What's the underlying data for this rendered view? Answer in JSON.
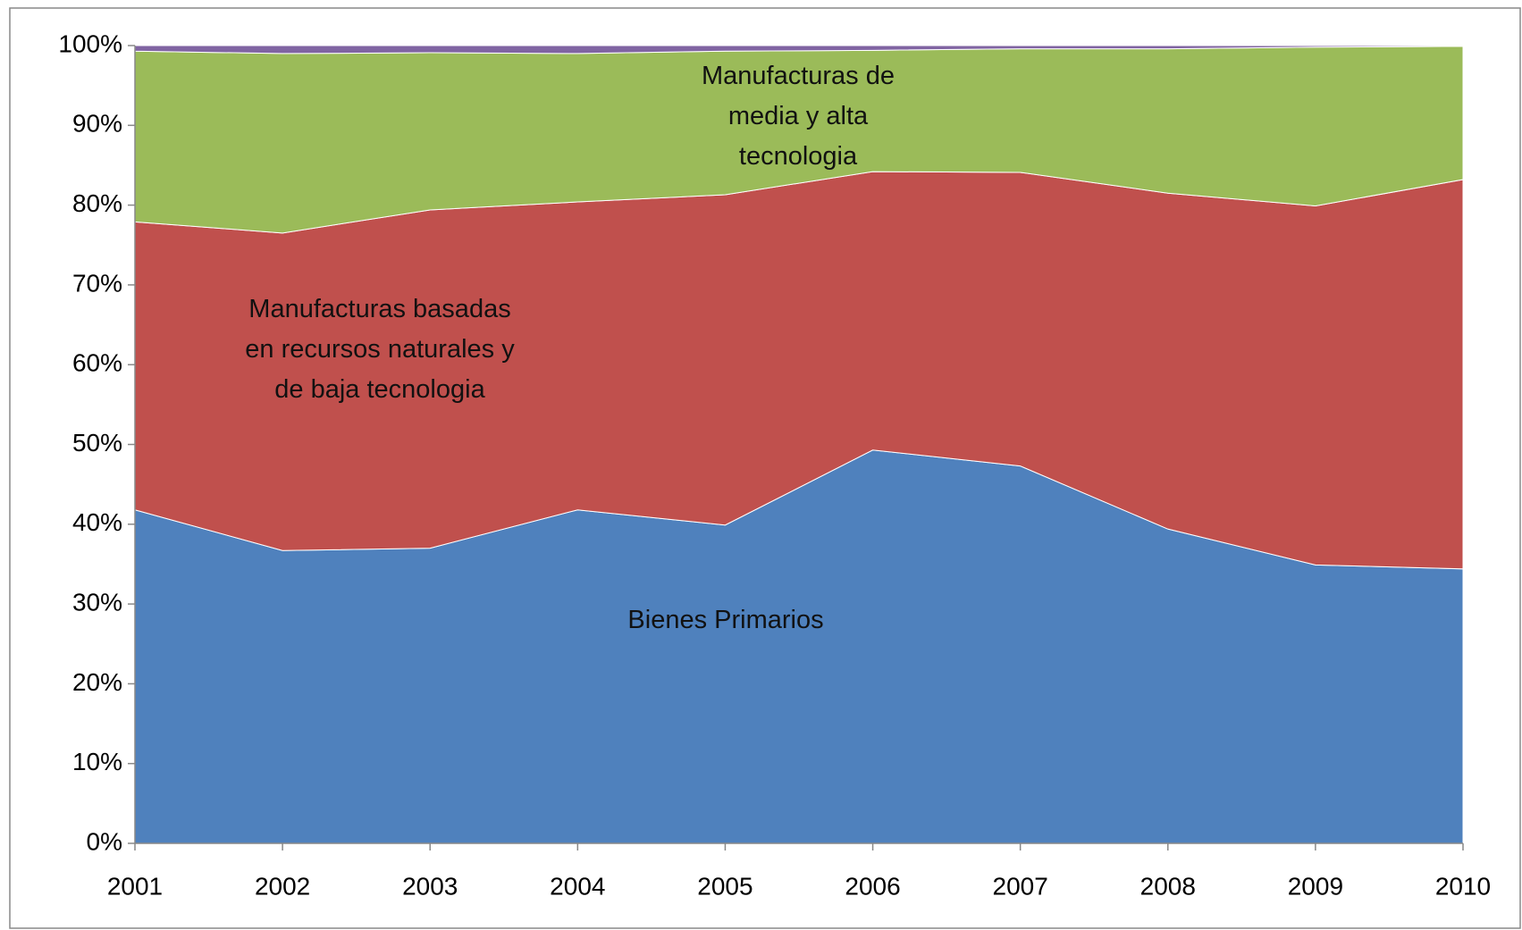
{
  "chart_data": {
    "type": "stacked_area_100",
    "categories": [
      "2001",
      "2002",
      "2003",
      "2004",
      "2005",
      "2006",
      "2007",
      "2008",
      "2009",
      "2010"
    ],
    "series": [
      {
        "name": "Bienes Primarios",
        "color": "#4f81bd",
        "values": [
          41.8,
          36.7,
          37.0,
          41.8,
          39.9,
          49.3,
          47.3,
          39.4,
          34.9,
          34.4
        ]
      },
      {
        "name": "Manufacturas basadas en recursos naturales y de baja tecnologia",
        "color": "#c0504d",
        "values": [
          36.1,
          39.8,
          42.4,
          38.6,
          41.4,
          34.9,
          36.8,
          42.1,
          45.0,
          48.8
        ]
      },
      {
        "name": "Manufacturas de media y alta tecnologia",
        "color": "#9bbb59",
        "values": [
          21.4,
          22.5,
          19.7,
          18.6,
          18.0,
          15.2,
          15.5,
          18.1,
          19.9,
          16.7
        ]
      },
      {
        "color": "#8064a2",
        "values": [
          0.7,
          1.0,
          0.9,
          1.0,
          0.7,
          0.6,
          0.4,
          0.4,
          0.2,
          0.1
        ]
      }
    ],
    "ylim": [
      0,
      100
    ],
    "yticks": [
      {
        "value": 0,
        "label": "0%"
      },
      {
        "value": 10,
        "label": "10%"
      },
      {
        "value": 20,
        "label": "20%"
      },
      {
        "value": 30,
        "label": "30%"
      },
      {
        "value": 40,
        "label": "40%"
      },
      {
        "value": 50,
        "label": "50%"
      },
      {
        "value": 60,
        "label": "60%"
      },
      {
        "value": 70,
        "label": "70%"
      },
      {
        "value": 80,
        "label": "80%"
      },
      {
        "value": 90,
        "label": "90%"
      },
      {
        "value": 100,
        "label": "100%"
      }
    ],
    "grid": false
  }
}
